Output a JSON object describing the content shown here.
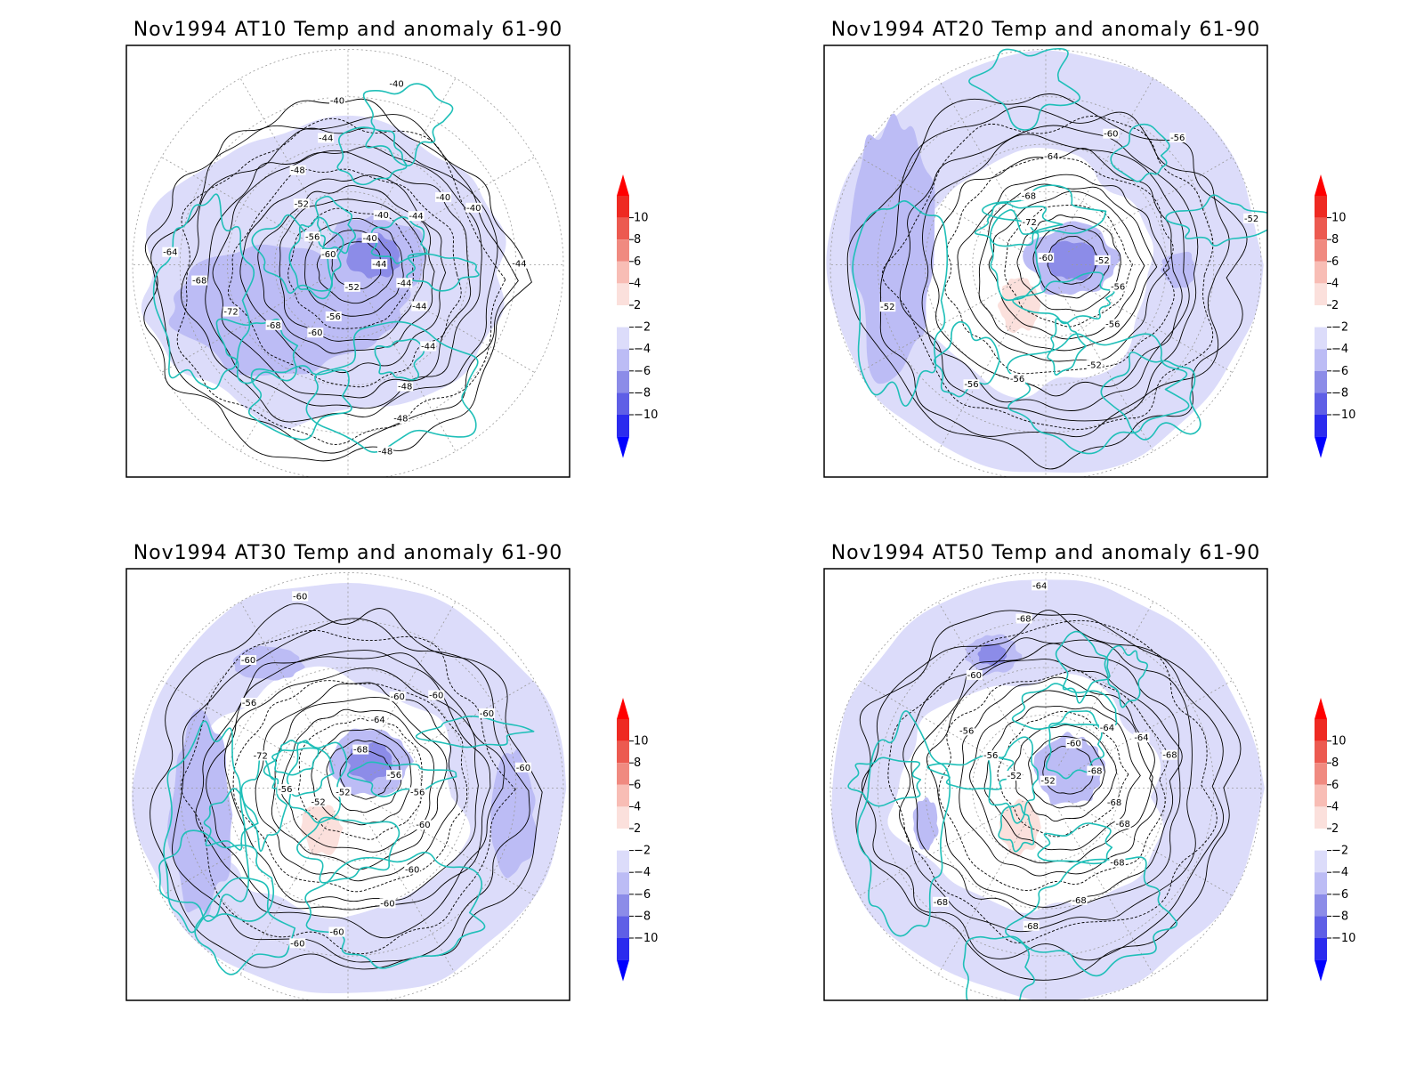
{
  "palette": {
    "coast": "#1fbfb8",
    "anom_neg2_0": "#dcdcfa",
    "anom_neg4_neg2": "#bcbcf5",
    "anom_neg6_neg4": "#8c8ce8",
    "anom_neg8_neg6": "#5f5fe6",
    "anom_neg10_neg8": "#2b2bee",
    "anom_lt_neg10": "#0000ff",
    "anom_0_2": "#fbe0dc",
    "anom_2_4": "#f8bdb5",
    "anom_4_6": "#f08a80",
    "anom_6_8": "#ec5a50",
    "anom_8_10": "#ee2a22",
    "anom_gt_10": "#ff0000"
  },
  "colorbar": {
    "ticks": [
      "10",
      "8",
      "6",
      "4",
      "2",
      "−2",
      "−4",
      "−6",
      "−8",
      "−10"
    ]
  },
  "panels": [
    {
      "title": "Nov1994 AT10 Temp and anomaly 61-90",
      "contour_labels": [
        "-44",
        "-44",
        "-44",
        "-44",
        "-48",
        "-48",
        "-48",
        "-52",
        "-56",
        "-60",
        "-68",
        "-72",
        "-68",
        "-64",
        "-60",
        "-56",
        "-52",
        "-48",
        "-44",
        "-40",
        "-40",
        "-40",
        "-40",
        "-44",
        "-40",
        "-40",
        "-44"
      ]
    },
    {
      "title": "Nov1994 AT20 Temp and anomaly 61-90",
      "contour_labels": [
        "-52",
        "-56",
        "-56",
        "-52",
        "-56",
        "-56",
        "-52",
        "-60",
        "-72",
        "-68",
        "-64",
        "-60",
        "-56",
        "-52"
      ]
    },
    {
      "title": "Nov1994 AT30 Temp and anomaly 61-90",
      "contour_labels": [
        "-56",
        "-56",
        "-60",
        "-60",
        "-60",
        "-60",
        "-60",
        "-52",
        "-52",
        "-56",
        "-72",
        "-56",
        "-60",
        "-60",
        "-68",
        "-64",
        "-60",
        "-60",
        "-60",
        "-60"
      ]
    },
    {
      "title": "Nov1994 AT50 Temp and anomaly 61-90",
      "contour_labels": [
        "-68",
        "-68",
        "-68",
        "-68",
        "-68",
        "-68",
        "-68",
        "-52",
        "-52",
        "-56",
        "-56",
        "-60",
        "-68",
        "-64",
        "-60",
        "-64",
        "-64",
        "-68"
      ]
    }
  ]
}
